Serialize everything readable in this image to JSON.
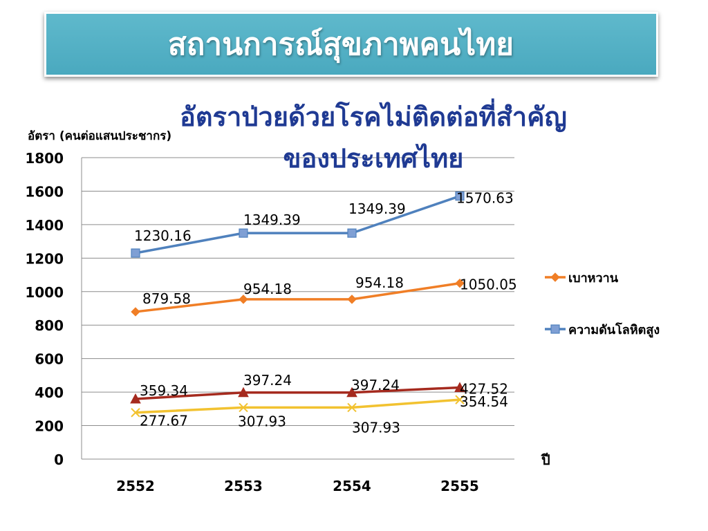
{
  "slide": {
    "title": "สถานการณ์สุขภาพคนไทย"
  },
  "chart_data": {
    "type": "line",
    "title_lines": [
      "อัตราป่วยด้วยโรคไม่ติดต่อที่สำคัญ",
      "ของประเทศไทย"
    ],
    "ylabel": "อัตรา (คนต่อแสนประชากร)",
    "xlabel": "ปี",
    "categories": [
      "2552",
      "2553",
      "2554",
      "2555"
    ],
    "ylim": [
      0,
      1800
    ],
    "yticks": [
      0,
      200,
      400,
      600,
      800,
      1000,
      1200,
      1400,
      1600,
      1800
    ],
    "grid": true,
    "legend_position": "right",
    "series": [
      {
        "name": "ความดันโลหิตสูง",
        "values": [
          1230.16,
          1349.39,
          1349.39,
          1570.63
        ],
        "labels": [
          "1230.16",
          "1349.39",
          "1349.39",
          "1570.63"
        ],
        "color": "#4f81bd",
        "marker": "square",
        "in_legend": true
      },
      {
        "name": "เบาหวาน",
        "values": [
          879.58,
          954.18,
          954.18,
          1050.05
        ],
        "labels": [
          "879.58",
          "954.18",
          "954.18",
          "1050.05"
        ],
        "color": "#f07e26",
        "marker": "diamond",
        "in_legend": true
      },
      {
        "name": "",
        "values": [
          359.34,
          397.24,
          397.24,
          427.52
        ],
        "labels": [
          "359.34",
          "397.24",
          "397.24",
          "427.52"
        ],
        "color": "#a52a1e",
        "marker": "triangle",
        "in_legend": false
      },
      {
        "name": "",
        "values": [
          277.67,
          307.93,
          307.93,
          354.54
        ],
        "labels": [
          "277.67",
          "307.93",
          "307.93",
          "354.54"
        ],
        "color": "#f2c230",
        "marker": "x",
        "in_legend": false
      }
    ],
    "legend_order": [
      "เบาหวาน",
      "ความดันโลหิตสูง"
    ],
    "title_color": "#1f3a93"
  }
}
